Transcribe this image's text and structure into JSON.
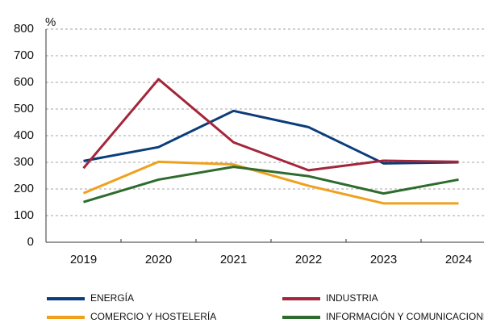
{
  "chart_data": {
    "type": "line",
    "ylabel": "%",
    "categories": [
      "2019",
      "2020",
      "2021",
      "2022",
      "2023",
      "2024"
    ],
    "series": [
      {
        "name": "ENERGÍA",
        "color": "#0b3d7a",
        "values": [
          305,
          357,
          493,
          432,
          296,
          300
        ]
      },
      {
        "name": "INDUSTRIA",
        "color": "#a3263a",
        "values": [
          278,
          612,
          375,
          270,
          306,
          302
        ]
      },
      {
        "name": "COMERCIO Y HOSTELERÍA",
        "color": "#f0a01c",
        "values": [
          184,
          302,
          292,
          212,
          146,
          146
        ]
      },
      {
        "name": "INFORMACIÓN Y COMUNICACIONES",
        "color": "#2e6b2e",
        "values": [
          151,
          235,
          283,
          248,
          183,
          235
        ]
      }
    ],
    "ylim": [
      0,
      800
    ],
    "yticks": [
      0,
      100,
      200,
      300,
      400,
      500,
      600,
      700,
      800
    ],
    "grid": true,
    "legend": "bottom"
  }
}
